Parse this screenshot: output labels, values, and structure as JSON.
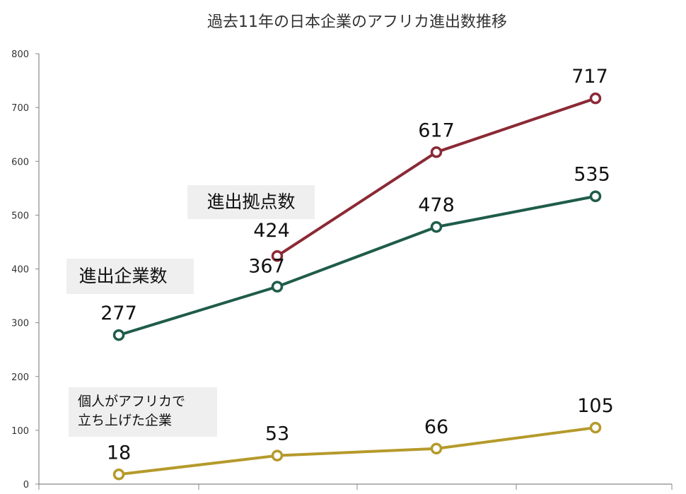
{
  "chart_data": {
    "type": "line",
    "title": "過去11年の日本企業のアフリカ進出数推移",
    "xlabel": "",
    "ylabel": "",
    "ylim": [
      0,
      800
    ],
    "yticks": [
      0,
      100,
      200,
      300,
      400,
      500,
      600,
      700,
      800
    ],
    "grid": false,
    "series": [
      {
        "name": "進出拠点数",
        "color": "#8b2a35",
        "points": [
          {
            "slot": 2,
            "value": 424
          },
          {
            "slot": 3,
            "value": 617
          },
          {
            "slot": 4,
            "value": 717
          }
        ]
      },
      {
        "name": "進出企業数",
        "color": "#1f5c4a",
        "points": [
          {
            "slot": 1,
            "value": 277
          },
          {
            "slot": 2,
            "value": 367
          },
          {
            "slot": 3,
            "value": 478
          },
          {
            "slot": 4,
            "value": 535
          }
        ]
      },
      {
        "name": "個人がアフリカで立ち上げた企業",
        "name_lines": [
          "個人がアフリカで",
          "立ち上げた企業"
        ],
        "color": "#b59a2b",
        "points": [
          {
            "slot": 1,
            "value": 18
          },
          {
            "slot": 2,
            "value": 53
          },
          {
            "slot": 3,
            "value": 66
          },
          {
            "slot": 4,
            "value": 105
          }
        ]
      }
    ]
  }
}
